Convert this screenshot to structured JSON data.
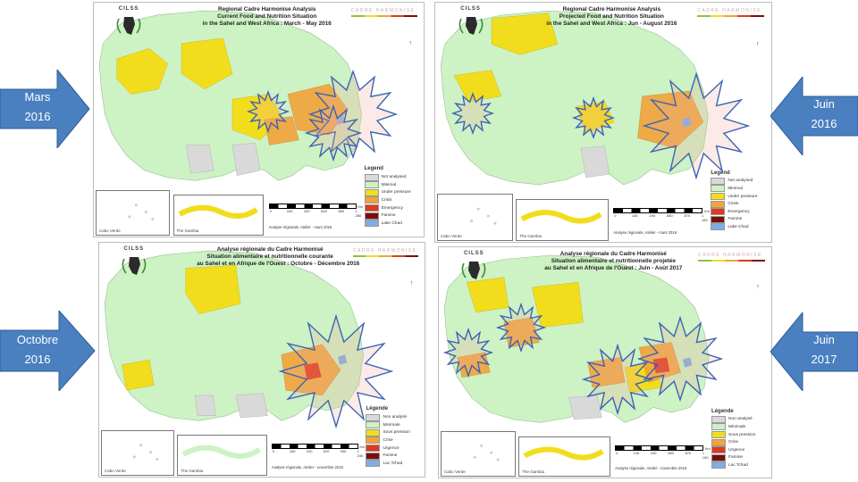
{
  "arrows": [
    {
      "line1": "Mars",
      "line2": "2016"
    },
    {
      "line1": "Juin",
      "line2": "2016"
    },
    {
      "line1": "Octobre",
      "line2": "2016"
    },
    {
      "line1": "Juin",
      "line2": "2017"
    }
  ],
  "colors": {
    "arrow": "#4a7fc0",
    "not_analysed": "#d9d9d9",
    "minimal": "#cdf2c4",
    "under_pressure": "#f2dd1c",
    "crisis": "#f2a33a",
    "emergency": "#dd3a1f",
    "famine": "#7a0e0e",
    "lake": "#7eaee3",
    "star": "#3c63b5"
  },
  "panels": [
    {
      "logo": "CILSS",
      "title": [
        "Regional Cadre Harmonise Analysis",
        "Current Food and Nutrition Situation",
        "in the Sahel and  West Africa : March - May 2016"
      ],
      "cadre": "CADRE HARMONISE",
      "legend_title": "Legend",
      "legend": [
        "Not analysed",
        "Minimal",
        "Under pressure",
        "Crisis",
        "Emergency",
        "Famine",
        "Lake Chad"
      ],
      "inset1": "Cabo Verde",
      "inset2": "The Gambia",
      "scale": [
        "0",
        "160",
        "320",
        "640",
        "960",
        "1 280"
      ],
      "scale_unit": "Km",
      "credit": "Analyse régionale, Atelier - mars 2016"
    },
    {
      "logo": "CILSS",
      "title": [
        "Regional Cadre Harmonise Analysis",
        "Projected Food and Nutrition Situation",
        "in the Sahel and  West Africa : Jun - August 2016"
      ],
      "cadre": "CADRE HARMONISE",
      "legend_title": "Legend",
      "legend": [
        "Not analysed",
        "Minimal",
        "Under pressure",
        "Crisis",
        "Emergency",
        "Famine",
        "Lake Chad"
      ],
      "inset1": "Cabo Verde",
      "inset2": "The Gambia",
      "scale": [
        "0",
        "145",
        "290",
        "580",
        "870",
        "1 160"
      ],
      "scale_unit": "Km",
      "credit": "Analyse régionale, Atelier - mars 2016"
    },
    {
      "logo": "CILSS",
      "title": [
        "Analyse régionale du Cadre Harmonisé",
        "Situation alimentaire et nutritionnelle courante",
        "au Sahel et en Afrique de l'Ouest : Octobre - Décembre 2016"
      ],
      "cadre": "CADRE HARMONISE",
      "legend_title": "Légende",
      "legend": [
        "Non analysé",
        "Minimale",
        "Sous pression",
        "Crise",
        "Urgence",
        "Famine",
        "Lac Tchad"
      ],
      "inset1": "Cabo Verde",
      "inset2": "The Gambia",
      "scale": [
        "0",
        "155",
        "310",
        "620",
        "930",
        "1 240"
      ],
      "scale_unit": "Km",
      "credit": "Analyse régionale, Atelier - novembre 2016"
    },
    {
      "logo": "CILSS",
      "title": [
        "Analyse régionale du Cadre Harmonisé",
        "Situation alimentaire et nutritionnelle projetée",
        "au Sahel et en Afrique de l'Ouest : Juin - Août 2017"
      ],
      "cadre": "CADRE HARMONISE",
      "legend_title": "Légende",
      "legend": [
        "Non analysé",
        "Minimale",
        "Sous pression",
        "Crise",
        "Urgence",
        "Famine",
        "Lac Tchad"
      ],
      "inset1": "Cabo Verde",
      "inset2": "The Gambia",
      "scale": [
        "0",
        "145",
        "290",
        "580",
        "870",
        "1 160"
      ],
      "scale_unit": "Km",
      "credit": "Analyse régionale, Atelier - novembre 2016"
    }
  ]
}
